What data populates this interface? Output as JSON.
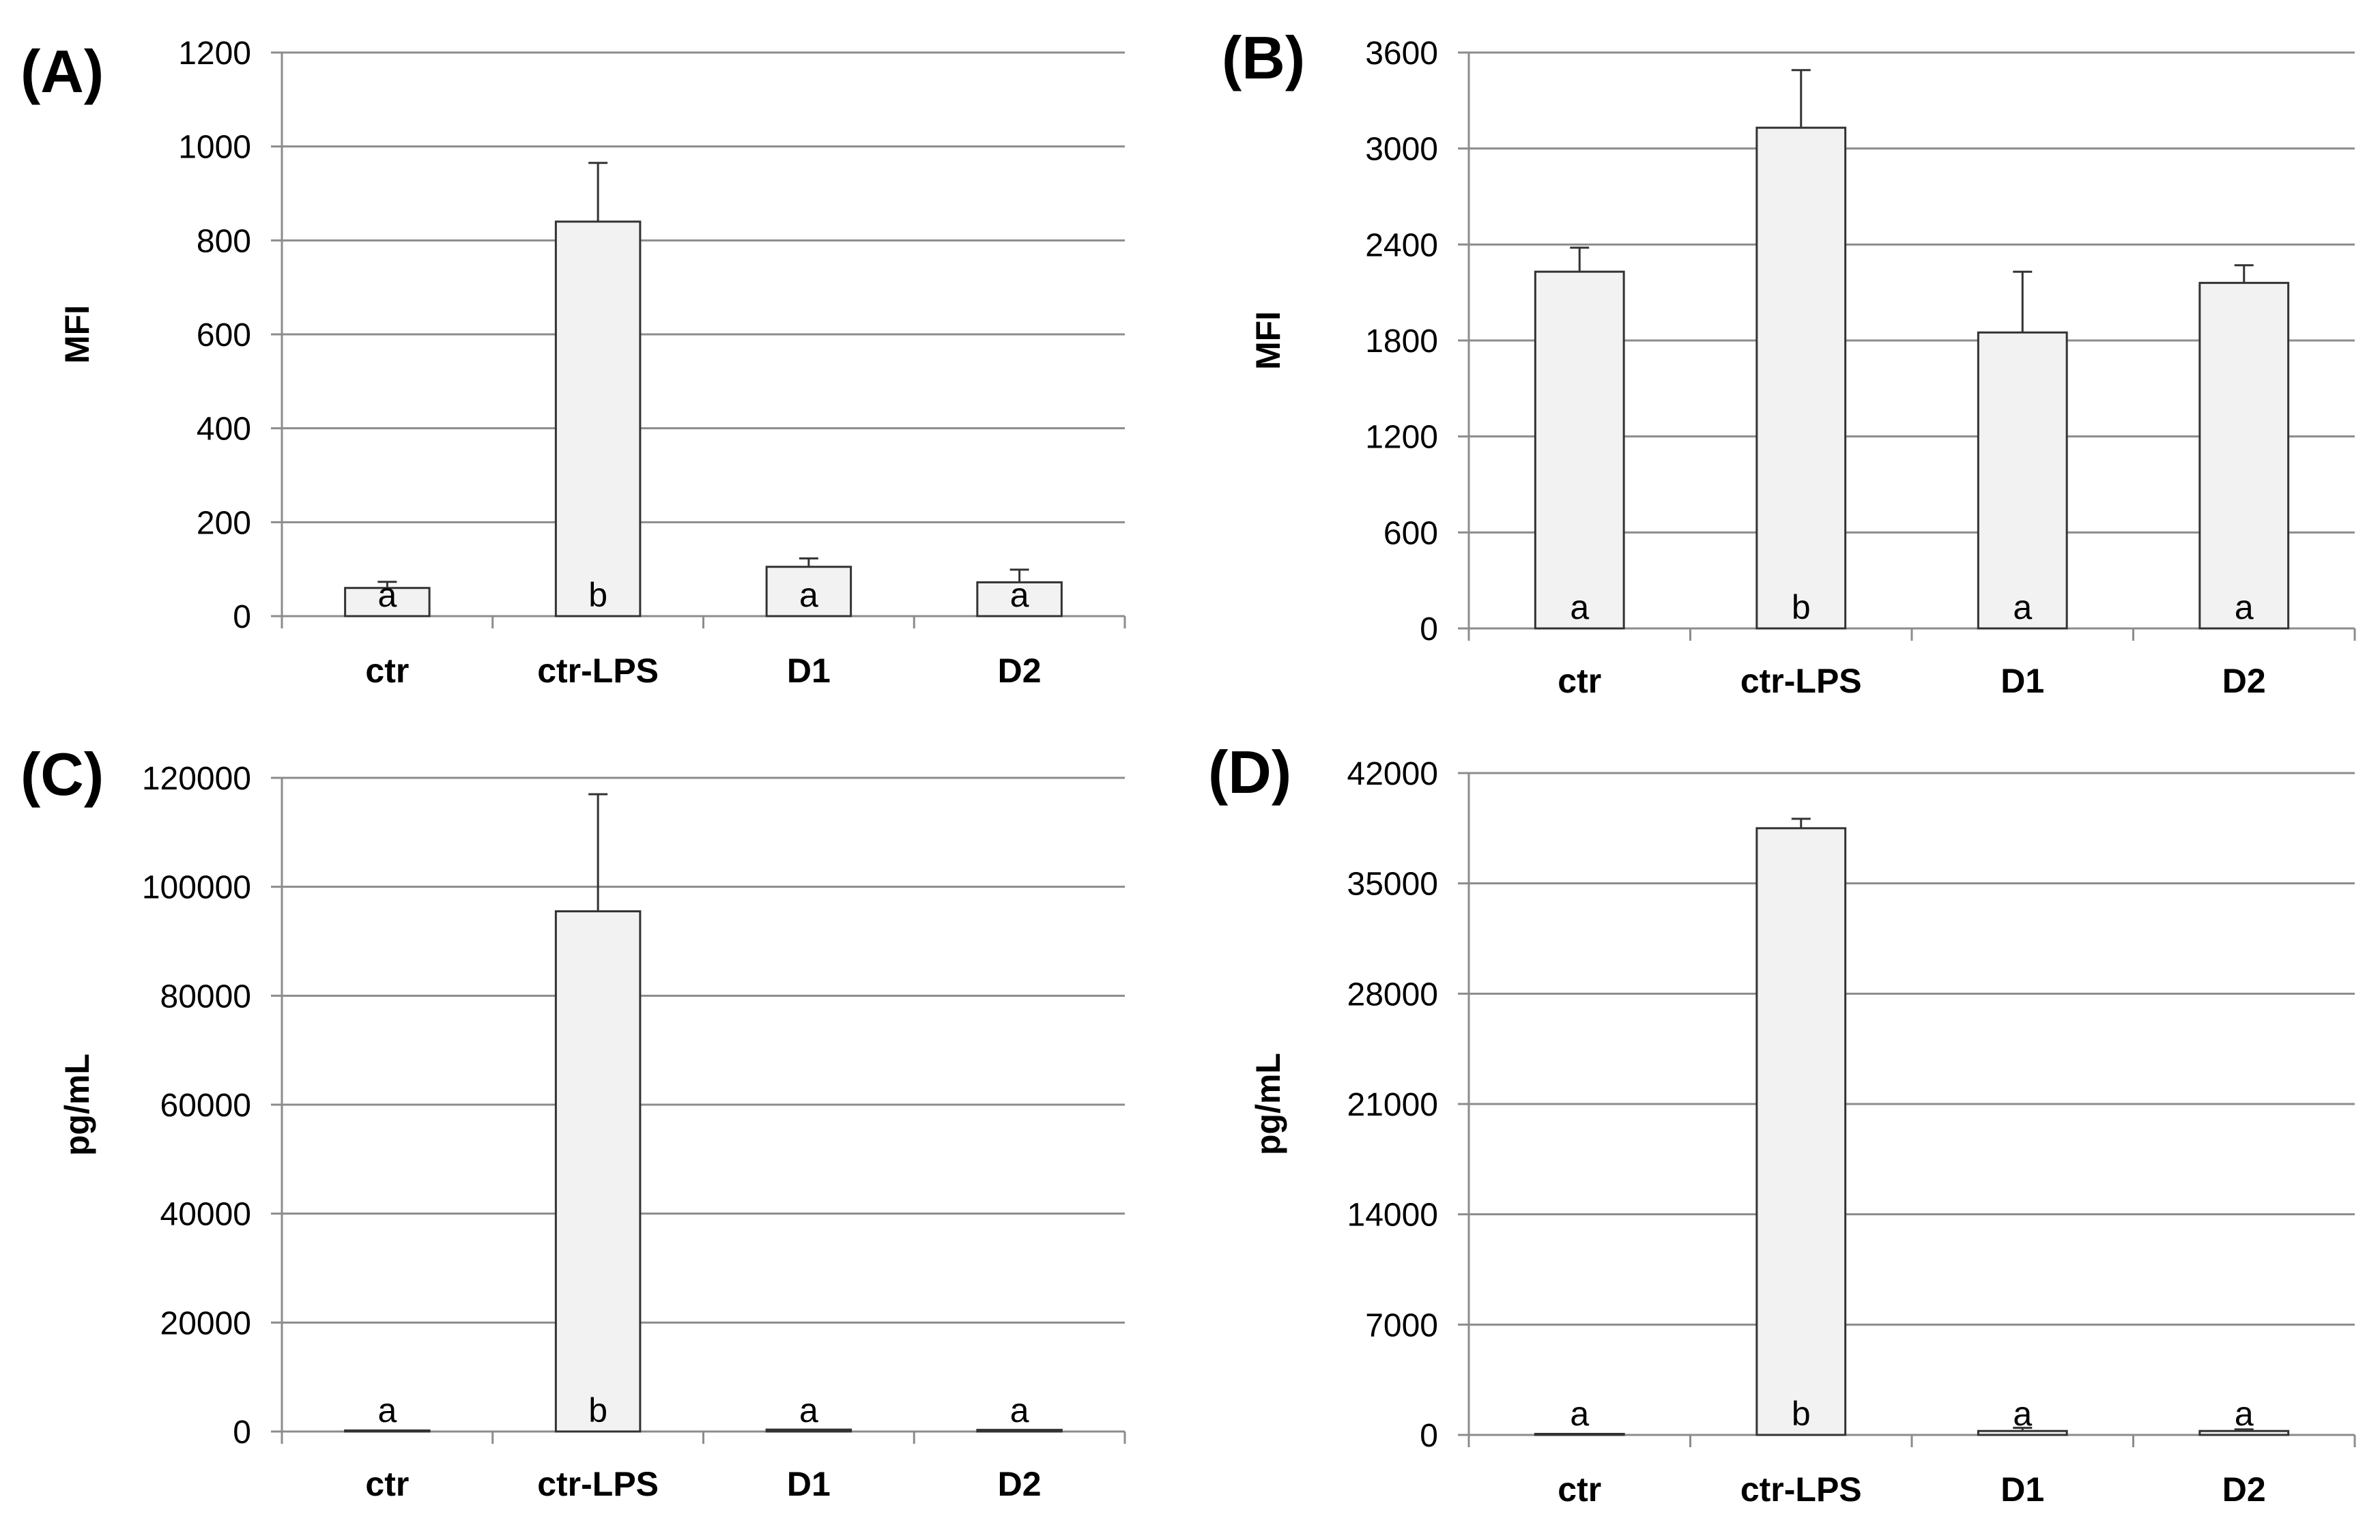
{
  "figure": {
    "colors": {
      "bar_fill": "#f2f2f2",
      "bar_stroke": "#333333",
      "grid": "#8c8c8c",
      "axis": "#8c8c8c"
    }
  },
  "chart_data": [
    {
      "panel": "(A)",
      "type": "bar",
      "categories": [
        "ctr",
        "ctr-LPS",
        "D1",
        "D2"
      ],
      "values": [
        60,
        840,
        105,
        72
      ],
      "errors": [
        13,
        125,
        18,
        27
      ],
      "significance": [
        "a",
        "b",
        "a",
        "a"
      ],
      "ylabel": "MFI",
      "ylim": [
        0,
        1200
      ],
      "yticks": [
        0,
        200,
        400,
        600,
        800,
        1000,
        1200
      ],
      "ytick_labels": [
        "0",
        "200",
        "400",
        "600",
        "800",
        "1000",
        "1200"
      ],
      "grid": true
    },
    {
      "panel": "(B)",
      "type": "bar",
      "categories": [
        "ctr",
        "ctr-LPS",
        "D1",
        "D2"
      ],
      "values": [
        2230,
        3130,
        1850,
        2160
      ],
      "errors": [
        150,
        360,
        380,
        110
      ],
      "significance": [
        "a",
        "b",
        "a",
        "a"
      ],
      "ylabel": "MFI",
      "ylim": [
        0,
        3600
      ],
      "yticks": [
        0,
        600,
        1200,
        1800,
        2400,
        3000,
        3600
      ],
      "ytick_labels": [
        "0",
        "600",
        "1200",
        "1800",
        "2400",
        "3000",
        "3600"
      ],
      "grid": true
    },
    {
      "panel": "(C)",
      "type": "bar",
      "categories": [
        "ctr",
        "ctr-LPS",
        "D1",
        "D2"
      ],
      "values": [
        100,
        95500,
        350,
        300
      ],
      "errors": [
        0,
        21500,
        0,
        0
      ],
      "significance": [
        "a",
        "b",
        "a",
        "a"
      ],
      "ylabel": "pg/mL",
      "ylim": [
        0,
        120000
      ],
      "yticks": [
        0,
        20000,
        40000,
        60000,
        80000,
        100000,
        120000
      ],
      "ytick_labels": [
        "0",
        "20000",
        "40000",
        "60000",
        "80000",
        "100000",
        "120000"
      ],
      "grid": true
    },
    {
      "panel": "(D)",
      "type": "bar",
      "categories": [
        "ctr",
        "ctr-LPS",
        "D1",
        "D2"
      ],
      "values": [
        50,
        38500,
        250,
        250
      ],
      "errors": [
        0,
        600,
        200,
        100
      ],
      "significance": [
        "a",
        "b",
        "a",
        "a"
      ],
      "ylabel": "pg/mL",
      "ylim": [
        0,
        42000
      ],
      "yticks": [
        0,
        7000,
        14000,
        21000,
        28000,
        35000,
        42000
      ],
      "ytick_labels": [
        "0",
        "7000",
        "14000",
        "21000",
        "28000",
        "35000",
        "42000"
      ],
      "grid": true
    }
  ]
}
